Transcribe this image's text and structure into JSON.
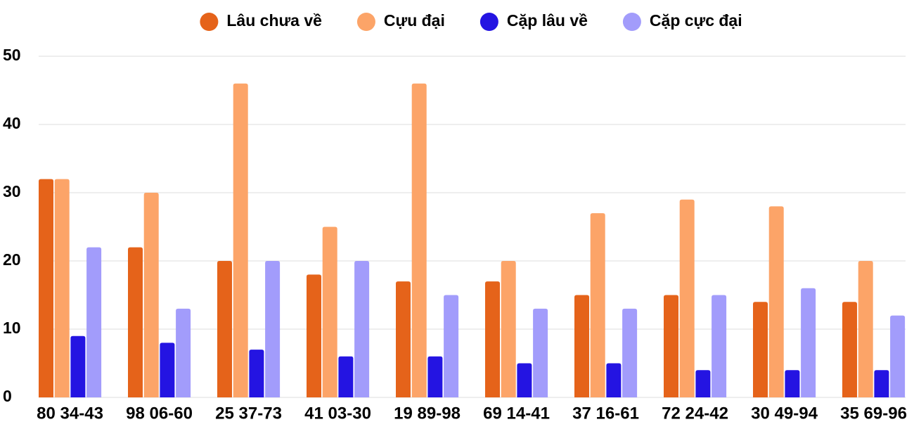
{
  "chart_data": {
    "type": "bar",
    "categories": [
      "80 34-43",
      "98 06-60",
      "25 37-73",
      "41 03-30",
      "19 89-98",
      "69 14-41",
      "37 16-61",
      "72 24-42",
      "30 49-94",
      "35 69-96"
    ],
    "series": [
      {
        "name": "Lâu chưa về",
        "color": "#e5631a",
        "values": [
          32,
          22,
          20,
          18,
          17,
          17,
          15,
          15,
          14,
          14
        ]
      },
      {
        "name": "Cựu đại",
        "color": "#fca468",
        "values": [
          32,
          30,
          46,
          25,
          46,
          20,
          27,
          29,
          28,
          20
        ]
      },
      {
        "name": "Cặp lâu về",
        "color": "#2414e2",
        "values": [
          9,
          8,
          7,
          6,
          6,
          5,
          5,
          4,
          4,
          4
        ]
      },
      {
        "name": "Cặp cực đại",
        "color": "#a29cfb",
        "values": [
          22,
          13,
          20,
          20,
          15,
          13,
          13,
          15,
          16,
          12
        ]
      }
    ],
    "ylim": [
      0,
      50
    ],
    "yticks": [
      0,
      10,
      20,
      30,
      40,
      50
    ],
    "grid": true,
    "legend": "top"
  }
}
